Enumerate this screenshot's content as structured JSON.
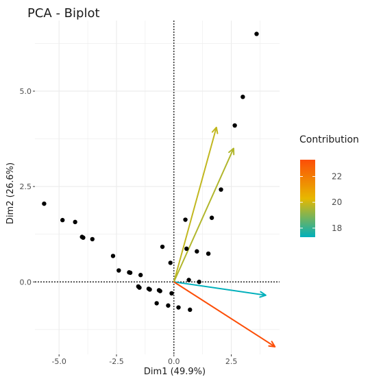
{
  "chart_data": {
    "type": "scatter",
    "subtype": "pca-biplot",
    "title": "PCA - Biplot",
    "xlabel": "Dim1 (49.9%)",
    "ylabel": "Dim2 (26.6%)",
    "xlim": [
      -6.05,
      4.6
    ],
    "ylim": [
      -1.9,
      6.85
    ],
    "x_ticks": [
      -5.0,
      -2.5,
      0.0,
      2.5,
      5.0
    ],
    "x_tick_labels": [
      "-5.0",
      "-2.5",
      "0.0",
      "2.5",
      "5.0"
    ],
    "y_ticks": [
      0.0,
      2.5,
      5.0
    ],
    "y_tick_labels": [
      "0.0",
      "2.5",
      "5.0"
    ],
    "grid": true,
    "legend_position": "right",
    "legend_title": "Contribution",
    "legend_ticks": [
      18,
      20,
      22
    ],
    "color_scale": {
      "min": 17.3,
      "max": 23.3,
      "colors": [
        "#00AFBB",
        "#E7B800",
        "#FC4E07"
      ]
    },
    "points": [
      {
        "x": -5.65,
        "y": 2.05
      },
      {
        "x": -4.85,
        "y": 1.62
      },
      {
        "x": -4.3,
        "y": 1.57
      },
      {
        "x": -4.0,
        "y": 1.18
      },
      {
        "x": -3.95,
        "y": 1.16
      },
      {
        "x": -3.55,
        "y": 1.12
      },
      {
        "x": -2.65,
        "y": 0.68
      },
      {
        "x": -2.4,
        "y": 0.3
      },
      {
        "x": -1.95,
        "y": 0.25
      },
      {
        "x": -1.9,
        "y": 0.24
      },
      {
        "x": -1.45,
        "y": 0.18
      },
      {
        "x": -0.5,
        "y": 0.92
      },
      {
        "x": 0.5,
        "y": 1.63
      },
      {
        "x": 1.65,
        "y": 1.68
      },
      {
        "x": 2.05,
        "y": 2.42
      },
      {
        "x": 2.65,
        "y": 4.1
      },
      {
        "x": 3.0,
        "y": 4.85
      },
      {
        "x": 3.6,
        "y": 6.5
      },
      {
        "x": 0.55,
        "y": 0.87
      },
      {
        "x": 1.0,
        "y": 0.8
      },
      {
        "x": 1.5,
        "y": 0.74
      },
      {
        "x": -0.15,
        "y": 0.5
      },
      {
        "x": 0.65,
        "y": 0.05
      },
      {
        "x": 1.1,
        "y": 0.0
      },
      {
        "x": -1.55,
        "y": -0.12
      },
      {
        "x": -1.5,
        "y": -0.15
      },
      {
        "x": -1.1,
        "y": -0.18
      },
      {
        "x": -1.05,
        "y": -0.2
      },
      {
        "x": -0.65,
        "y": -0.22
      },
      {
        "x": -0.6,
        "y": -0.24
      },
      {
        "x": -0.1,
        "y": -0.3
      },
      {
        "x": -0.75,
        "y": -0.56
      },
      {
        "x": -0.25,
        "y": -0.62
      },
      {
        "x": 0.2,
        "y": -0.67
      },
      {
        "x": 0.7,
        "y": -0.73
      }
    ],
    "variables": [
      {
        "x": 1.85,
        "y": 4.05,
        "contribution": 19.8
      },
      {
        "x": 2.6,
        "y": 3.5,
        "contribution": 19.6
      },
      {
        "x": 4.0,
        "y": -0.35,
        "contribution": 17.3
      },
      {
        "x": 4.4,
        "y": -1.7,
        "contribution": 23.3
      }
    ]
  }
}
